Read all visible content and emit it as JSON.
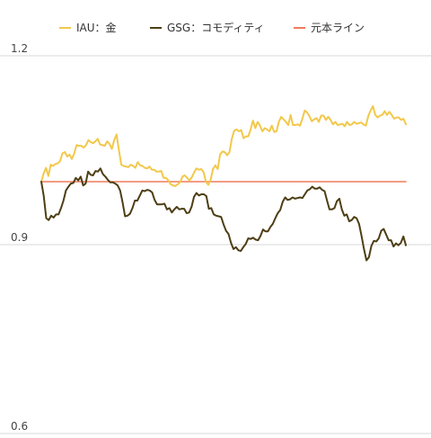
{
  "chart_data": {
    "type": "line",
    "title": "",
    "xlabel": "",
    "ylabel": "",
    "ylim": [
      0.6,
      1.2
    ],
    "yticks": [
      1.2,
      0.9,
      0.6
    ],
    "ytick_labels": [
      "1.2",
      "0.9",
      "0.6"
    ],
    "grid": "horizontal",
    "legend_position": "top",
    "series": [
      {
        "name": "IAU：金",
        "color": "#f2c84b",
        "values": [
          1.0,
          1.013,
          1.022,
          1.009,
          1.027,
          1.025,
          1.028,
          1.029,
          1.033,
          1.045,
          1.047,
          1.04,
          1.043,
          1.036,
          1.045,
          1.058,
          1.057,
          1.057,
          1.054,
          1.058,
          1.066,
          1.063,
          1.061,
          1.064,
          1.068,
          1.059,
          1.058,
          1.057,
          1.064,
          1.06,
          1.052,
          1.066,
          1.075,
          1.05,
          1.027,
          1.025,
          1.024,
          1.023,
          1.027,
          1.025,
          1.022,
          1.031,
          1.026,
          1.025,
          1.022,
          1.021,
          1.024,
          1.019,
          1.019,
          1.016,
          1.016,
          1.017,
          1.006,
          1.006,
          1.002,
          0.996,
          0.994,
          0.993,
          0.996,
          0.999,
          1.008,
          1.01,
          1.006,
          1.002,
          1.007,
          1.015,
          1.021,
          1.019,
          1.02,
          1.015,
          1.0,
          0.995,
          1.003,
          1.02,
          1.026,
          1.02,
          1.043,
          1.048,
          1.047,
          1.042,
          1.047,
          1.068,
          1.081,
          1.083,
          1.08,
          1.082,
          1.069,
          1.072,
          1.072,
          1.083,
          1.097,
          1.085,
          1.095,
          1.089,
          1.08,
          1.085,
          1.083,
          1.08,
          1.089,
          1.079,
          1.08,
          1.095,
          1.103,
          1.099,
          1.095,
          1.09,
          1.106,
          1.09,
          1.09,
          1.091,
          1.089,
          1.1,
          1.113,
          1.11,
          1.104,
          1.096,
          1.099,
          1.101,
          1.095,
          1.105,
          1.105,
          1.098,
          1.103,
          1.098,
          1.091,
          1.095,
          1.09,
          1.091,
          1.092,
          1.088,
          1.095,
          1.09,
          1.091,
          1.095,
          1.092,
          1.093,
          1.094,
          1.091,
          1.089,
          1.104,
          1.113,
          1.12,
          1.106,
          1.102,
          1.105,
          1.106,
          1.112,
          1.106,
          1.111,
          1.106,
          1.1,
          1.102,
          1.102,
          1.098,
          1.1,
          1.091
        ]
      },
      {
        "name": "GSG：コモディティ",
        "color": "#4d3e15",
        "values": [
          1.0,
          0.977,
          0.942,
          0.939,
          0.946,
          0.943,
          0.948,
          0.948,
          0.958,
          0.97,
          0.986,
          0.992,
          0.997,
          0.998,
          1.006,
          1.002,
          1.008,
          0.994,
          0.997,
          1.016,
          1.011,
          1.01,
          1.017,
          1.016,
          1.021,
          1.012,
          1.008,
          1.003,
          0.999,
          0.999,
          0.997,
          0.994,
          0.986,
          0.967,
          0.945,
          0.946,
          0.949,
          0.958,
          0.97,
          0.97,
          0.978,
          0.986,
          0.985,
          0.987,
          0.986,
          0.983,
          0.971,
          0.964,
          0.964,
          0.964,
          0.965,
          0.956,
          0.958,
          0.951,
          0.956,
          0.96,
          0.956,
          0.957,
          0.957,
          0.95,
          0.951,
          0.96,
          0.976,
          0.982,
          0.978,
          0.98,
          0.98,
          0.977,
          0.957,
          0.958,
          0.948,
          0.946,
          0.945,
          0.944,
          0.932,
          0.922,
          0.917,
          0.903,
          0.893,
          0.896,
          0.891,
          0.89,
          0.896,
          0.901,
          0.91,
          0.909,
          0.911,
          0.908,
          0.907,
          0.914,
          0.924,
          0.921,
          0.921,
          0.928,
          0.933,
          0.942,
          0.95,
          0.955,
          0.968,
          0.975,
          0.971,
          0.972,
          0.975,
          0.973,
          0.974,
          0.975,
          0.974,
          0.98,
          0.986,
          0.988,
          0.992,
          0.989,
          0.989,
          0.991,
          0.987,
          0.985,
          0.97,
          0.956,
          0.956,
          0.958,
          0.969,
          0.973,
          0.956,
          0.946,
          0.948,
          0.937,
          0.939,
          0.944,
          0.942,
          0.933,
          0.914,
          0.893,
          0.875,
          0.88,
          0.898,
          0.906,
          0.905,
          0.91,
          0.922,
          0.925,
          0.916,
          0.907,
          0.907,
          0.897,
          0.902,
          0.899,
          0.903,
          0.913,
          0.899
        ]
      },
      {
        "name": "元本ライン",
        "color": "#f07c5c",
        "values": [
          1.0,
          1.0
        ]
      }
    ]
  }
}
